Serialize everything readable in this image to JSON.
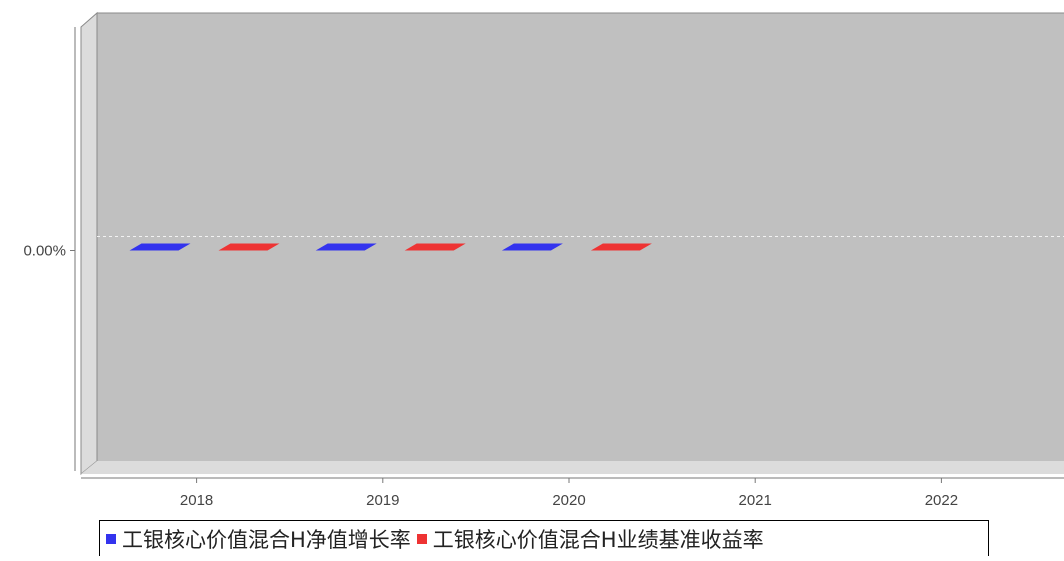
{
  "chart_data": {
    "type": "bar",
    "style": "3d",
    "categories": [
      "2018",
      "2019",
      "2020",
      "2021",
      "2022"
    ],
    "series": [
      {
        "name": "工银核心价值混合H净值增长率",
        "color": "#3333ee",
        "values": [
          0,
          0,
          0,
          null,
          null
        ]
      },
      {
        "name": "工银核心价值混合H业绩基准收益率",
        "color": "#ee3333",
        "values": [
          0,
          0,
          0,
          null,
          null
        ]
      }
    ],
    "yticks": [
      {
        "value": 0,
        "label": "0.00%"
      }
    ],
    "ylim": [
      -1,
      1
    ],
    "title": "",
    "xlabel": "",
    "ylabel": "",
    "legend_position": "bottom",
    "grid": true,
    "plot_background": "#c0c0c0"
  }
}
